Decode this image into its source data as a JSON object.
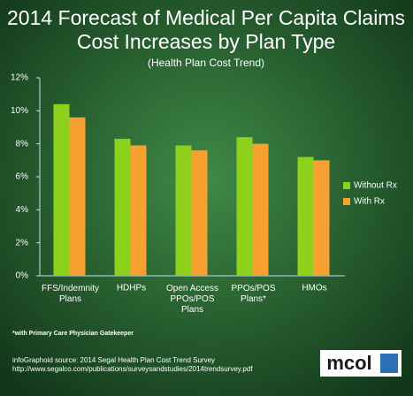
{
  "chart_data": {
    "type": "bar",
    "title": "2014 Forecast of Medical Per Capita Claims\nCost Increases by Plan Type",
    "subtitle": "(Health Plan Cost Trend)",
    "categories": [
      "FFS/Indemnity\nPlans",
      "HDHPs",
      "Open Access\nPPOs/POS\nPlans",
      "PPOs/POS\nPlans*",
      "HMOs"
    ],
    "series": [
      {
        "name": "Without Rx",
        "color": "#8ed11c",
        "values": [
          10.4,
          8.3,
          7.9,
          8.4,
          7.2
        ]
      },
      {
        "name": "With Rx",
        "color": "#f7a133",
        "values": [
          9.6,
          7.9,
          7.6,
          8.0,
          7.0
        ]
      }
    ],
    "ylim": [
      0,
      12
    ],
    "yticks": [
      {
        "value": 0,
        "label": "0%"
      },
      {
        "value": 2,
        "label": "2%"
      },
      {
        "value": 4,
        "label": "4%"
      },
      {
        "value": 6,
        "label": "6%"
      },
      {
        "value": 8,
        "label": "8%"
      },
      {
        "value": 10,
        "label": "10%"
      },
      {
        "value": 12,
        "label": "12%"
      }
    ],
    "footnote": "*with Primary Care Physician Gatekeeper",
    "source": "infoGraphoid source:  2014 Segal Health Plan Cost Trend Survey",
    "url": "http://www.segalco.com/publications/surveysandstudies/2014trendsurvey.pdf",
    "logo": "mcol",
    "legend": "right"
  }
}
